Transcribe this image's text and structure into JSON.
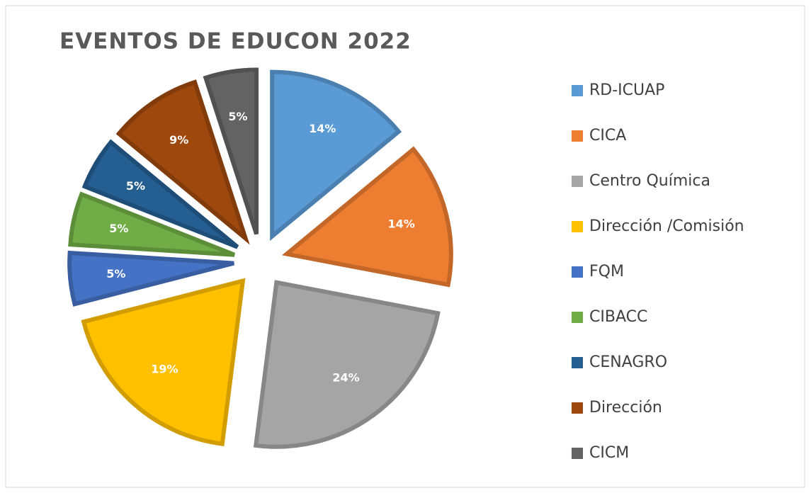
{
  "chart_data": {
    "type": "pie",
    "title": "EVENTOS DE EDUCON  2022",
    "categories": [
      "RD-ICUAP",
      "CICA",
      "Centro Química",
      "Dirección /Comisión",
      "FQM",
      "CIBACC",
      "CENAGRO",
      "Dirección",
      "CICM"
    ],
    "values": [
      14,
      14,
      24,
      19,
      5,
      5,
      5,
      9,
      5
    ],
    "value_labels": [
      "14%",
      "14%",
      "24%",
      "19%",
      "5%",
      "5%",
      "5%",
      "9%",
      "5%"
    ],
    "colors": [
      "#5b9bd5",
      "#ed7d31",
      "#a5a5a5",
      "#ffc000",
      "#4472c4",
      "#70ad47",
      "#255e91",
      "#9e480e",
      "#636363"
    ],
    "legend": "right"
  }
}
